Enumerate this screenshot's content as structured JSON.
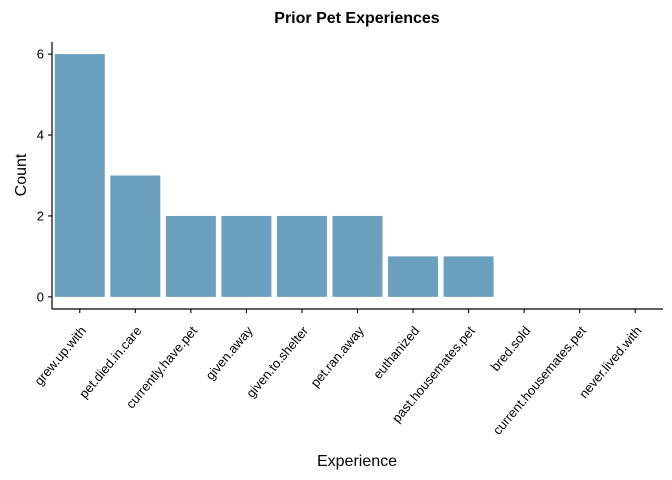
{
  "chart_data": {
    "type": "bar",
    "title": "Prior Pet Experiences",
    "xlabel": "Experience",
    "ylabel": "Count",
    "categories": [
      "grew.up.with",
      "pet.died.in.care",
      "currently.have.pet",
      "given.away",
      "given.to.shelter",
      "pet.ran.away",
      "euthanized",
      "past.housemates.pet",
      "bred.sold",
      "current.housemates.pet",
      "never.lived.with"
    ],
    "values": [
      6,
      3,
      2,
      2,
      2,
      2,
      1,
      1,
      0,
      0,
      0
    ],
    "y_ticks": [
      0,
      2,
      4,
      6
    ],
    "ylim": [
      -0.3,
      6.3
    ],
    "bar_color": "#6a9fbe",
    "grid": false,
    "legend": "none"
  }
}
